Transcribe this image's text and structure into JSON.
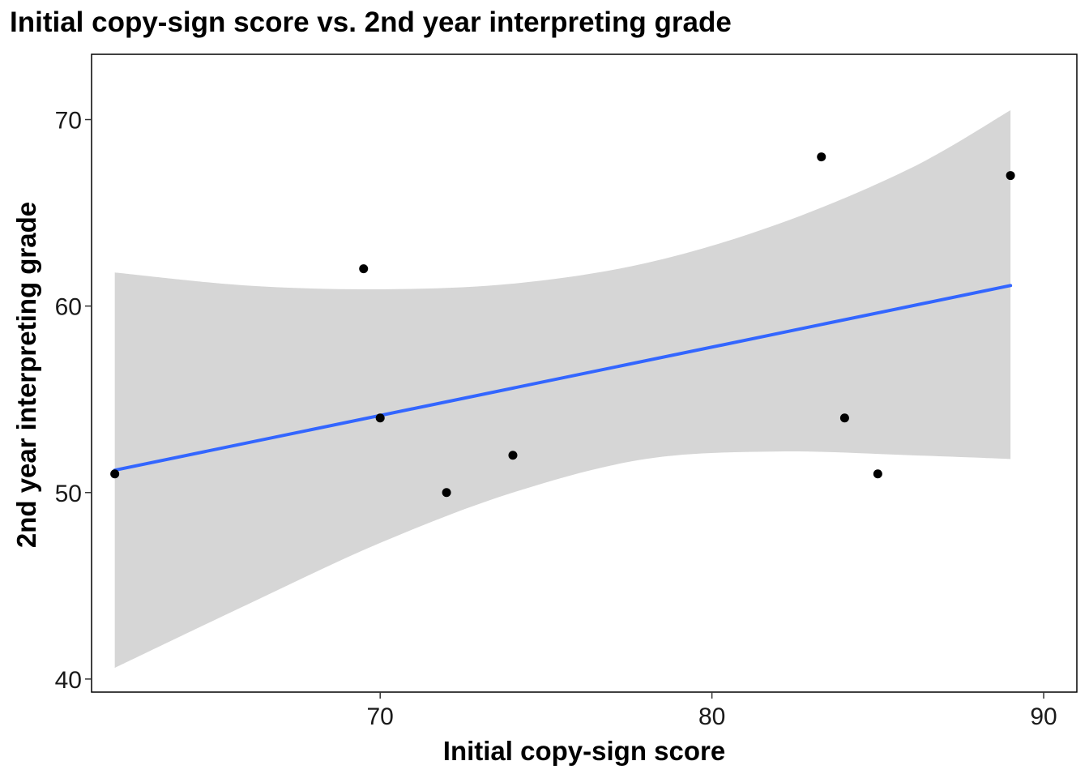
{
  "chart_data": {
    "type": "scatter",
    "title": "Initial copy-sign score vs. 2nd year interpreting grade",
    "xlabel": "Initial copy-sign score",
    "ylabel": "2nd year interpreting grade",
    "xlim": [
      61.3,
      91.0
    ],
    "ylim": [
      39.3,
      73.5
    ],
    "x_ticks": [
      70,
      80,
      90
    ],
    "y_ticks": [
      40,
      50,
      60,
      70
    ],
    "grid": false,
    "colors": {
      "points": "#000000",
      "fit_line": "#3366FF",
      "ci_band": "#d6d6d6",
      "panel_border": "#000000"
    },
    "points": [
      {
        "x": 62.0,
        "y": 51
      },
      {
        "x": 69.5,
        "y": 62
      },
      {
        "x": 70.0,
        "y": 54
      },
      {
        "x": 72.0,
        "y": 50
      },
      {
        "x": 74.0,
        "y": 52
      },
      {
        "x": 83.3,
        "y": 68
      },
      {
        "x": 84.0,
        "y": 54
      },
      {
        "x": 85.0,
        "y": 51
      },
      {
        "x": 89.0,
        "y": 67
      }
    ],
    "fit_line": {
      "x": [
        62.0,
        89.0
      ],
      "y": [
        51.2,
        61.1
      ]
    },
    "ci_band": {
      "x": [
        62.0,
        66.0,
        70.0,
        74.0,
        78.0,
        82.0,
        86.0,
        89.0
      ],
      "upper": [
        61.8,
        61.1,
        60.9,
        61.2,
        62.3,
        64.4,
        67.4,
        70.5
      ],
      "lower": [
        40.6,
        44.0,
        47.3,
        50.0,
        51.8,
        52.2,
        52.0,
        51.8
      ]
    }
  }
}
